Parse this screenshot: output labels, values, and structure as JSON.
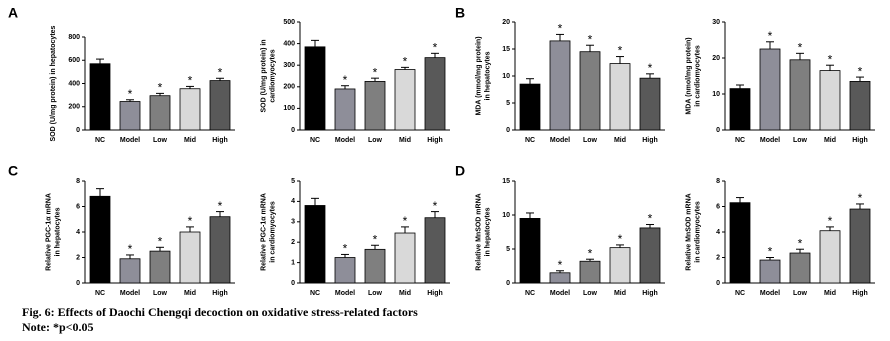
{
  "panels": [
    "A",
    "B",
    "C",
    "D"
  ],
  "caption": [
    "Fig. 6: Effects of Daochi Chengqi decoction on oxidative stress-related factors",
    "Note: *p<0.05"
  ],
  "chart_data": [
    {
      "type": "bar",
      "ylabel": [
        "SOD (U/mg protein) in hepatocytes"
      ],
      "categories": [
        "NC",
        "Model",
        "Low",
        "Mid",
        "High"
      ],
      "colors": [
        "#000000",
        "#8e8e99",
        "#7f7f7f",
        "#d9d9d9",
        "#595959"
      ],
      "values": [
        570,
        245,
        295,
        355,
        425
      ],
      "errors": [
        40,
        15,
        20,
        20,
        20
      ],
      "annotations": [
        null,
        "*",
        "*",
        "*",
        "*"
      ],
      "ylim": [
        0,
        800
      ],
      "yticks": [
        0,
        200,
        400,
        600,
        800
      ]
    },
    {
      "type": "bar",
      "ylabel": [
        "SOD (U/mg protein) in",
        "cardiomyocytes"
      ],
      "categories": [
        "NC",
        "Model",
        "Low",
        "Mid",
        "High"
      ],
      "colors": [
        "#000000",
        "#8e8e99",
        "#7f7f7f",
        "#d9d9d9",
        "#595959"
      ],
      "values": [
        385,
        190,
        225,
        280,
        335
      ],
      "errors": [
        30,
        15,
        15,
        10,
        20
      ],
      "annotations": [
        null,
        "*",
        "*",
        "*",
        "*"
      ],
      "ylim": [
        0,
        500
      ],
      "yticks": [
        0,
        100,
        200,
        300,
        400,
        500
      ]
    },
    {
      "type": "bar",
      "ylabel": [
        "MDA (mmol/mg protein)",
        "in hepatocytes"
      ],
      "categories": [
        "NC",
        "Model",
        "Low",
        "Mid",
        "High"
      ],
      "colors": [
        "#000000",
        "#8e8e99",
        "#7f7f7f",
        "#d9d9d9",
        "#595959"
      ],
      "values": [
        8.5,
        16.5,
        14.5,
        12.3,
        9.6
      ],
      "errors": [
        1,
        1.2,
        1.2,
        1.3,
        0.8
      ],
      "annotations": [
        null,
        "*",
        "*",
        "*",
        "*"
      ],
      "ylim": [
        0,
        20
      ],
      "yticks": [
        0,
        5,
        10,
        15,
        20
      ]
    },
    {
      "type": "bar",
      "ylabel": [
        "MDA (nmol/mg protein)",
        "in cardiomyocytes"
      ],
      "categories": [
        "NC",
        "Model",
        "Low",
        "Mid",
        "High"
      ],
      "colors": [
        "#000000",
        "#8e8e99",
        "#7f7f7f",
        "#d9d9d9",
        "#595959"
      ],
      "values": [
        11.5,
        22.5,
        19.5,
        16.5,
        13.5
      ],
      "errors": [
        1,
        2,
        1.8,
        1.5,
        1.2
      ],
      "annotations": [
        null,
        "*",
        "*",
        "*",
        "*"
      ],
      "ylim": [
        0,
        30
      ],
      "yticks": [
        0,
        10,
        20,
        30
      ]
    },
    {
      "type": "bar",
      "ylabel": [
        "Relative PGC-1α mRNA",
        "in hepatocytes"
      ],
      "categories": [
        "NC",
        "Model",
        "Low",
        "Mid",
        "High"
      ],
      "colors": [
        "#000000",
        "#8e8e99",
        "#7f7f7f",
        "#d9d9d9",
        "#595959"
      ],
      "values": [
        6.8,
        1.9,
        2.5,
        4,
        5.2
      ],
      "errors": [
        0.6,
        0.3,
        0.3,
        0.4,
        0.4
      ],
      "annotations": [
        null,
        "*",
        "*",
        "*",
        "*"
      ],
      "ylim": [
        0,
        8
      ],
      "yticks": [
        0,
        2,
        4,
        6,
        8
      ]
    },
    {
      "type": "bar",
      "ylabel": [
        "Relative PGC-1α mRNA",
        "in cardiomyocytes"
      ],
      "categories": [
        "NC",
        "Model",
        "Low",
        "Mid",
        "High"
      ],
      "colors": [
        "#000000",
        "#8e8e99",
        "#7f7f7f",
        "#d9d9d9",
        "#595959"
      ],
      "values": [
        3.8,
        1.25,
        1.65,
        2.45,
        3.2
      ],
      "errors": [
        0.35,
        0.15,
        0.2,
        0.3,
        0.3
      ],
      "annotations": [
        null,
        "*",
        "*",
        "*",
        "*"
      ],
      "ylim": [
        0,
        5
      ],
      "yticks": [
        0,
        1,
        2,
        3,
        4,
        5
      ]
    },
    {
      "type": "bar",
      "ylabel": [
        "Relative MnSOD mRNA",
        "in hepatocytes"
      ],
      "categories": [
        "NC",
        "Model",
        "Low",
        "Mid",
        "High"
      ],
      "colors": [
        "#000000",
        "#8e8e99",
        "#7f7f7f",
        "#d9d9d9",
        "#595959"
      ],
      "values": [
        9.5,
        1.5,
        3.2,
        5.2,
        8.1
      ],
      "errors": [
        0.8,
        0.3,
        0.3,
        0.4,
        0.5
      ],
      "annotations": [
        null,
        "*",
        "*",
        "*",
        "*"
      ],
      "ylim": [
        0,
        15
      ],
      "yticks": [
        0,
        5,
        10,
        15
      ]
    },
    {
      "type": "bar",
      "ylabel": [
        "Relative MnSOD mRNA",
        "in cardiomyocytes"
      ],
      "categories": [
        "NC",
        "Model",
        "Low",
        "Mid",
        "High"
      ],
      "colors": [
        "#000000",
        "#8e8e99",
        "#7f7f7f",
        "#d9d9d9",
        "#595959"
      ],
      "values": [
        6.3,
        1.8,
        2.35,
        4.1,
        5.8
      ],
      "errors": [
        0.4,
        0.2,
        0.3,
        0.3,
        0.4
      ],
      "annotations": [
        null,
        "*",
        "*",
        "*",
        "*"
      ],
      "ylim": [
        0,
        8
      ],
      "yticks": [
        0,
        2,
        4,
        6,
        8
      ]
    }
  ]
}
